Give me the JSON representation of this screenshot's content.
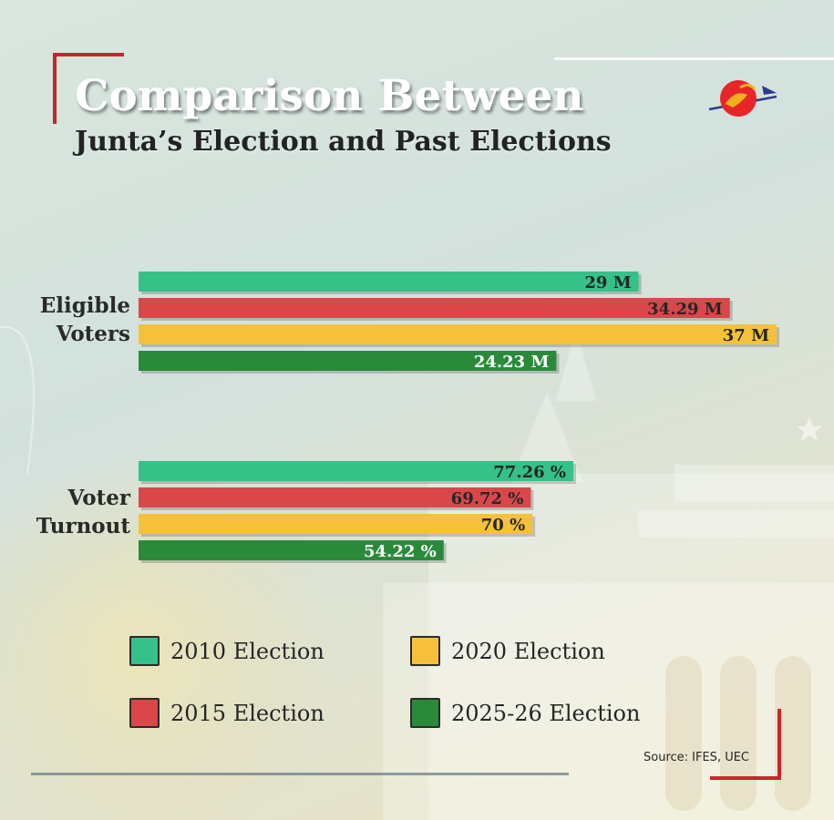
{
  "header": {
    "title": "Comparison Between",
    "subtitle": "Junta’s Election and Past Elections"
  },
  "logo": {
    "icon": "sun-swan-logo-icon"
  },
  "colors": {
    "2010": "#35c188",
    "2015": "#d9474b",
    "2020": "#f5c13b",
    "2025": "#2a8a3a",
    "accent_red": "#c8262a"
  },
  "chart_data": {
    "type": "bar",
    "orientation": "horizontal",
    "title": "Comparison Between Junta’s Election and Past Elections",
    "categories": [
      "Eligible Voters",
      "Voter Turnout"
    ],
    "category_lines": [
      [
        "Eligible",
        "Voters"
      ],
      [
        "Voter",
        "Turnout"
      ]
    ],
    "series": [
      {
        "name": "2010 Election",
        "values": [
          29,
          77.26
        ],
        "labels": [
          "29 M",
          "77.26 %"
        ],
        "color": "#35c188",
        "label_color": "#262626"
      },
      {
        "name": "2015 Election",
        "values": [
          34.29,
          69.72
        ],
        "labels": [
          "34.29 M",
          "69.72 %"
        ],
        "color": "#d9474b",
        "label_color": "#262626"
      },
      {
        "name": "2020 Election",
        "values": [
          37,
          70
        ],
        "labels": [
          "37 M",
          "70 %"
        ],
        "color": "#f5c13b",
        "label_color": "#262626"
      },
      {
        "name": "2025-26 Election",
        "values": [
          24.23,
          54.22
        ],
        "labels": [
          "24.23 M",
          "54.22 %"
        ],
        "color": "#2a8a3a",
        "label_color": "#ffffff"
      }
    ],
    "units": [
      "M",
      "%"
    ],
    "grid": false,
    "legend_position": "bottom"
  },
  "legend": {
    "items": [
      {
        "label": "2010 Election",
        "color": "#35c188"
      },
      {
        "label": "2020 Election",
        "color": "#f5c13b"
      },
      {
        "label": "2015 Election",
        "color": "#d9474b"
      },
      {
        "label": "2025-26 Election",
        "color": "#2a8a3a"
      }
    ]
  },
  "source": "Source: IFES, UEC"
}
